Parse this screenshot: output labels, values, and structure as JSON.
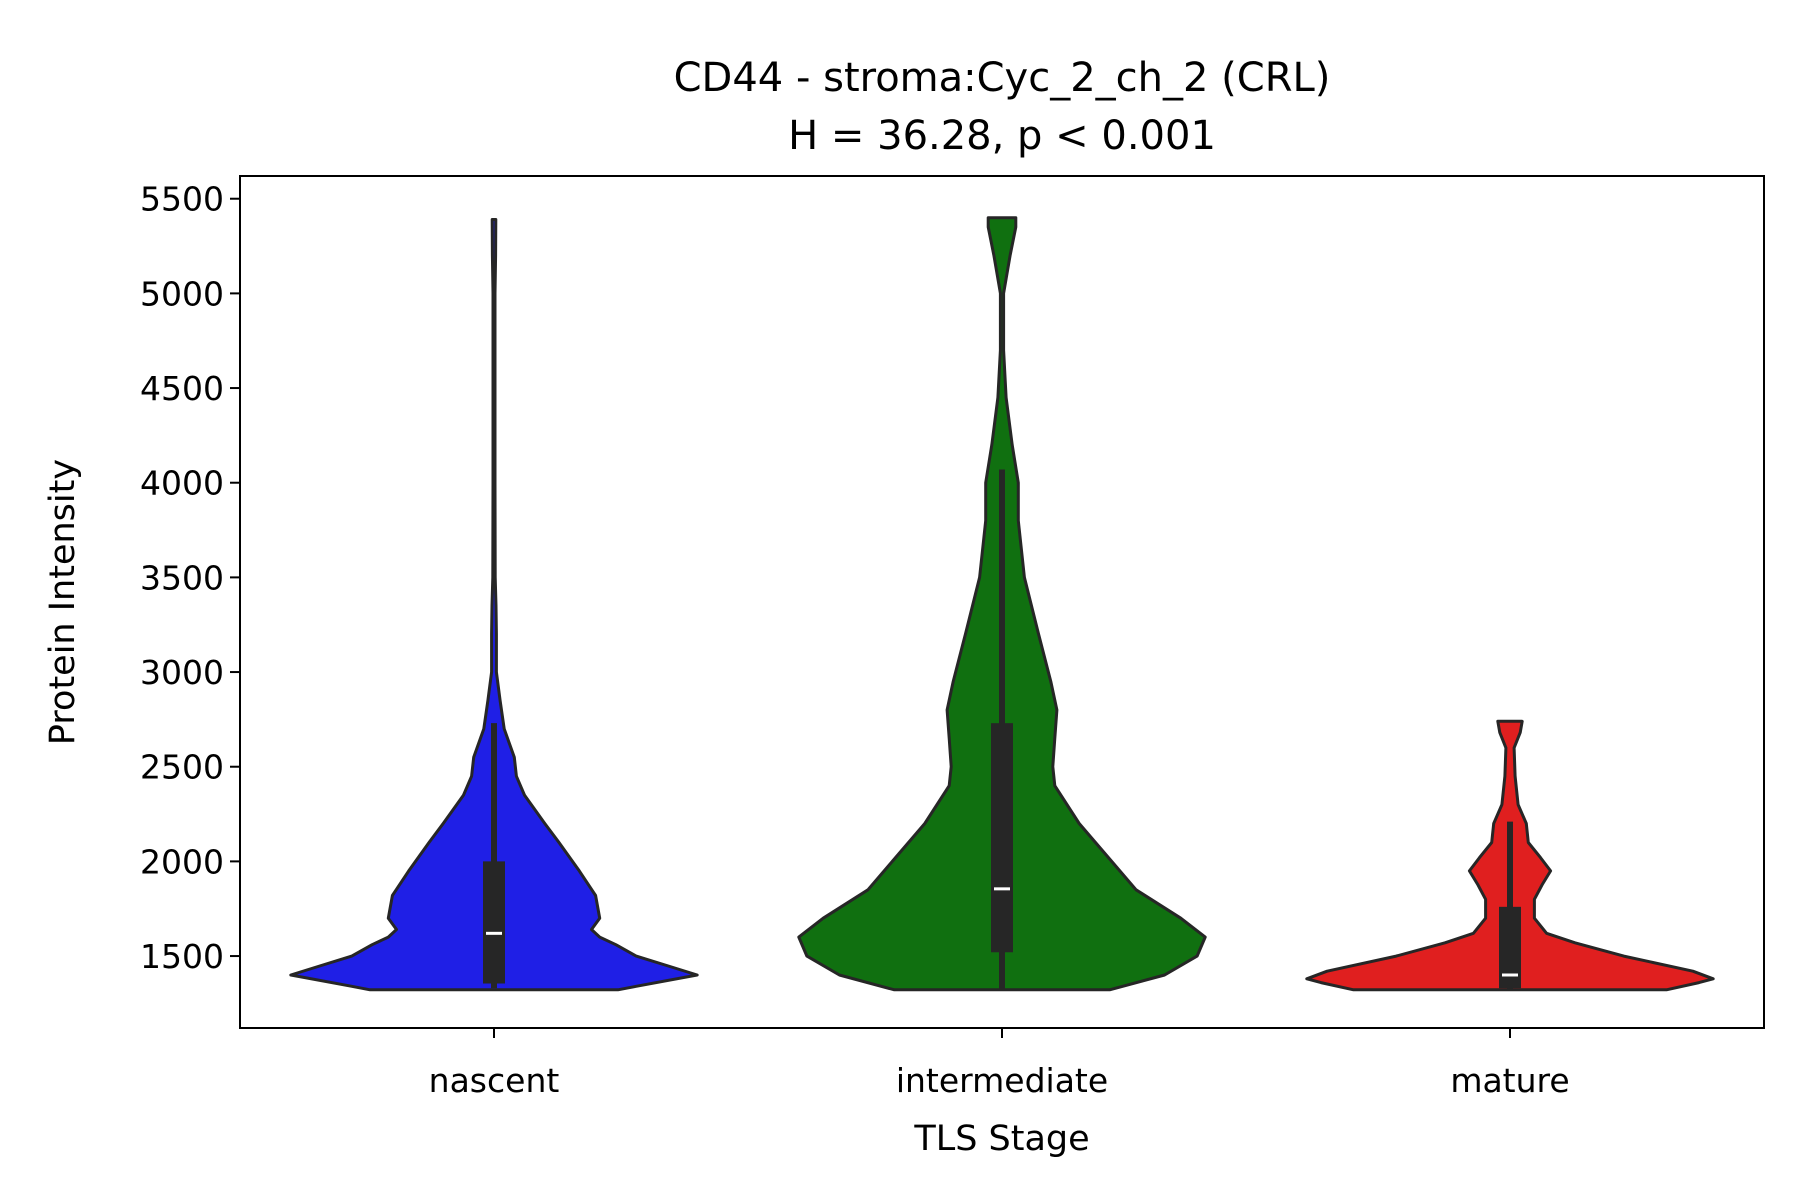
{
  "chart_data": {
    "type": "violin",
    "title": "CD44 - stroma:Cyc_2_ch_2 (CRL)",
    "subtitle": "H = 36.28, p < 0.001",
    "xlabel": "TLS Stage",
    "ylabel": "Protein Intensity",
    "categories": [
      "nascent",
      "intermediate",
      "mature"
    ],
    "ylim": [
      1120,
      5620
    ],
    "yticks": [
      "1500",
      "2000",
      "2500",
      "3000",
      "3500",
      "4000",
      "4500",
      "5000",
      "5500"
    ],
    "grid": false,
    "legend": "none",
    "colors": [
      "#1f1fe6",
      "#107010",
      "#e01f1f"
    ],
    "edge_color": "#262626",
    "series": [
      {
        "category": "nascent",
        "min": 1322,
        "q1": 1355,
        "median": 1620,
        "q3": 2000,
        "max": 5390,
        "whisker_low": 1330,
        "whisker_high": 2730,
        "density": [
          [
            1322,
            0.61
          ],
          [
            1340,
            0.7
          ],
          [
            1400,
            1.0
          ],
          [
            1450,
            0.85
          ],
          [
            1500,
            0.7
          ],
          [
            1560,
            0.6
          ],
          [
            1600,
            0.52
          ],
          [
            1640,
            0.48
          ],
          [
            1700,
            0.52
          ],
          [
            1820,
            0.5
          ],
          [
            1950,
            0.42
          ],
          [
            2100,
            0.32
          ],
          [
            2200,
            0.25
          ],
          [
            2350,
            0.15
          ],
          [
            2450,
            0.11
          ],
          [
            2550,
            0.1
          ],
          [
            2700,
            0.05
          ],
          [
            2850,
            0.03
          ],
          [
            3000,
            0.012
          ],
          [
            3200,
            0.012
          ],
          [
            3350,
            0.01
          ],
          [
            3500,
            0.006
          ],
          [
            4000,
            0.005
          ],
          [
            4500,
            0.005
          ],
          [
            5000,
            0.005
          ],
          [
            5200,
            0.008
          ],
          [
            5390,
            0.009
          ]
        ]
      },
      {
        "category": "intermediate",
        "min": 1322,
        "q1": 1520,
        "median": 1855,
        "q3": 2730,
        "max": 5400,
        "whisker_low": 1322,
        "whisker_high": 4070,
        "density": [
          [
            1322,
            0.53
          ],
          [
            1400,
            0.8
          ],
          [
            1500,
            0.96
          ],
          [
            1600,
            1.0
          ],
          [
            1700,
            0.88
          ],
          [
            1850,
            0.66
          ],
          [
            2000,
            0.54
          ],
          [
            2200,
            0.38
          ],
          [
            2400,
            0.26
          ],
          [
            2500,
            0.25
          ],
          [
            2650,
            0.26
          ],
          [
            2800,
            0.27
          ],
          [
            2950,
            0.24
          ],
          [
            3200,
            0.18
          ],
          [
            3500,
            0.11
          ],
          [
            3800,
            0.08
          ],
          [
            4000,
            0.08
          ],
          [
            4200,
            0.05
          ],
          [
            4450,
            0.02
          ],
          [
            4700,
            0.008
          ],
          [
            5000,
            0.008
          ],
          [
            5200,
            0.04
          ],
          [
            5350,
            0.068
          ],
          [
            5400,
            0.068
          ]
        ]
      },
      {
        "category": "mature",
        "min": 1322,
        "q1": 1330,
        "median": 1400,
        "q3": 1760,
        "max": 2740,
        "whisker_low": 1322,
        "whisker_high": 2210,
        "density": [
          [
            1322,
            0.77
          ],
          [
            1360,
            0.93
          ],
          [
            1380,
            1.0
          ],
          [
            1420,
            0.9
          ],
          [
            1500,
            0.56
          ],
          [
            1570,
            0.32
          ],
          [
            1620,
            0.18
          ],
          [
            1700,
            0.12
          ],
          [
            1800,
            0.12
          ],
          [
            1880,
            0.16
          ],
          [
            1950,
            0.2
          ],
          [
            2020,
            0.15
          ],
          [
            2100,
            0.09
          ],
          [
            2200,
            0.08
          ],
          [
            2300,
            0.04
          ],
          [
            2450,
            0.025
          ],
          [
            2600,
            0.02
          ],
          [
            2680,
            0.05
          ],
          [
            2740,
            0.06
          ]
        ]
      }
    ]
  }
}
